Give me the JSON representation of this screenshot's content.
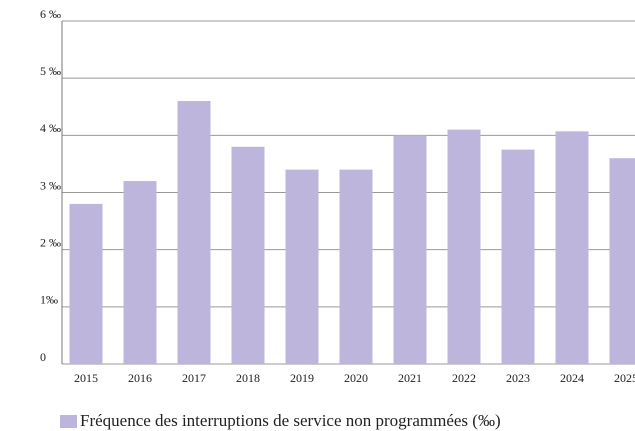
{
  "chart_data": {
    "type": "bar",
    "categories": [
      "2015",
      "2016",
      "2017",
      "2018",
      "2019",
      "2020",
      "2021",
      "2022",
      "2023",
      "2024",
      "2025"
    ],
    "series": [
      {
        "name": "Fréquence des interruptions de service non programmées (‰)",
        "color": "#bdb5dc",
        "values": [
          2.8,
          3.2,
          4.6,
          3.8,
          3.4,
          3.4,
          4.0,
          4.1,
          3.75,
          4.07,
          3.6
        ]
      }
    ],
    "ylim": [
      0,
      6
    ],
    "yticks": [
      0,
      {
        "value": 1,
        "label": "1‰"
      },
      {
        "value": 2,
        "label": "2 ‰"
      },
      {
        "value": 3,
        "label": "3 ‰"
      },
      {
        "value": 4,
        "label": "4 ‰"
      },
      {
        "value": 5,
        "label": "5 ‰"
      },
      {
        "value": 6,
        "label": "6 ‰"
      }
    ],
    "grid": true
  }
}
